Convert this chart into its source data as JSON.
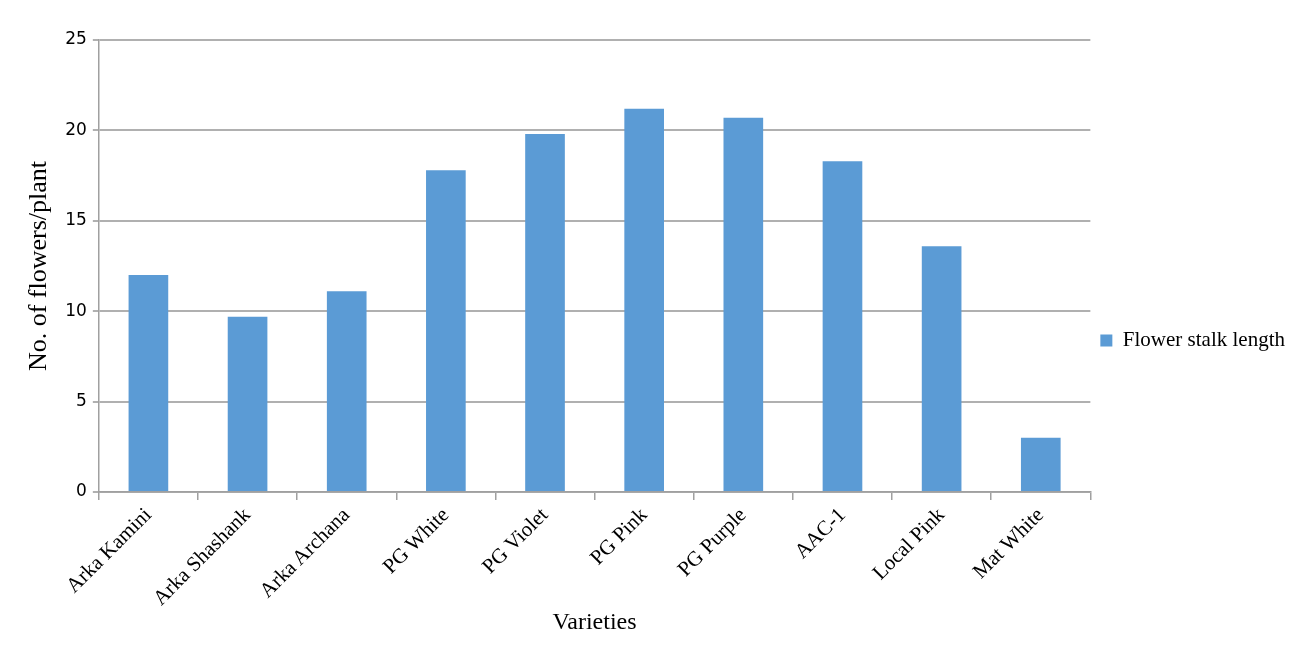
{
  "chart_data": {
    "type": "bar",
    "xlabel": "Varieties",
    "ylabel": "No. of flowers/plant",
    "categories": [
      "Arka Kamini",
      "Arka Shashank",
      "Arka Archana",
      "PG White",
      "PG Violet",
      "PG Pink",
      "PG Purple",
      "AAC-1",
      "Local Pink",
      "Mat White"
    ],
    "series": [
      {
        "name": "Flower stalk length",
        "color": "#5b9bd5",
        "values": [
          12.0,
          9.7,
          11.1,
          17.8,
          19.8,
          21.2,
          20.7,
          18.3,
          13.6,
          3.0
        ]
      }
    ],
    "ylim": [
      0,
      25
    ],
    "yticks": [
      0,
      5,
      10,
      15,
      20,
      25
    ],
    "grid": "y",
    "legend": "right"
  }
}
